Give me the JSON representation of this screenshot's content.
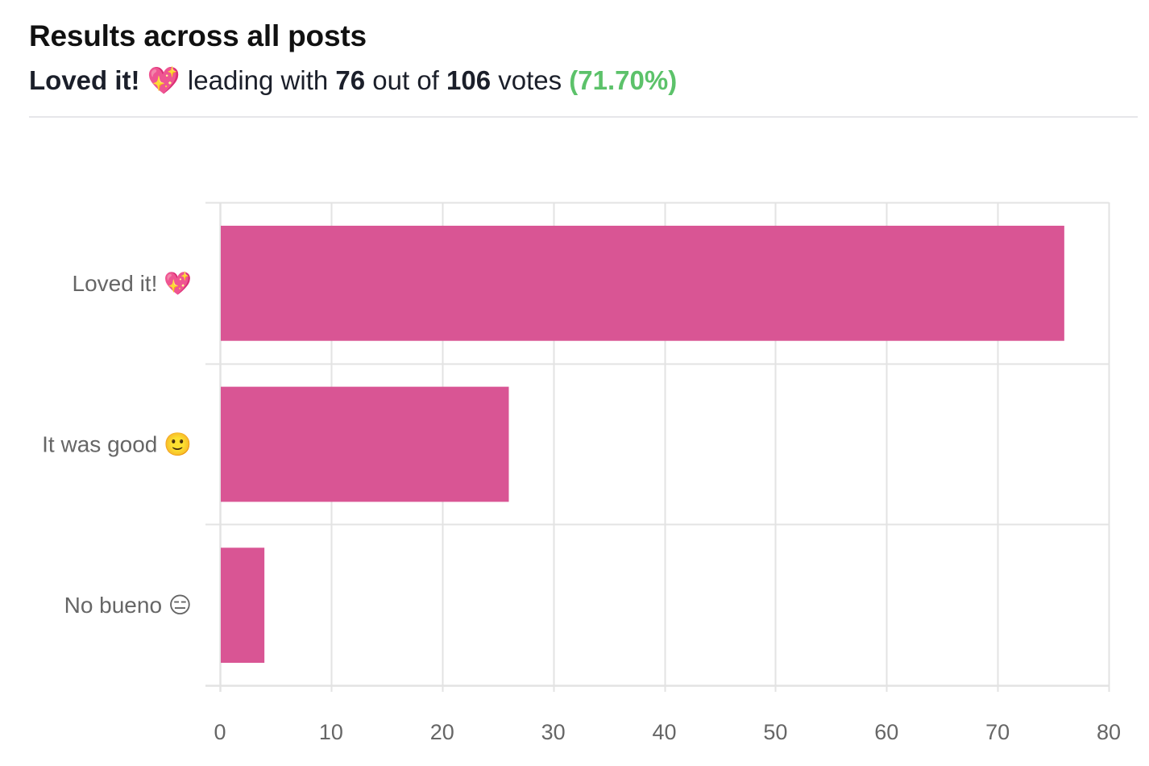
{
  "header": {
    "title": "Results across all posts",
    "leader_label": "Loved it! 💖",
    "text_leading_with": " leading with ",
    "leader_votes": "76",
    "text_out_of": " out of ",
    "total_votes": "106",
    "text_votes": " votes ",
    "leader_percent": "(71.70%)"
  },
  "colors": {
    "bar": "#d95594",
    "percent": "#5cc26a",
    "grid": "#e3e3e3",
    "axis_text": "#666666"
  },
  "chart_data": {
    "type": "bar",
    "orientation": "horizontal",
    "title": "Results across all posts",
    "subtitle": "Loved it! 💖 leading with 76 out of 106 votes (71.70%)",
    "categories": [
      "Loved it! 💖",
      "It was good 🙂",
      "No bueno 😑"
    ],
    "values": [
      76,
      26,
      4
    ],
    "xlabel": "",
    "ylabel": "",
    "xlim": [
      0,
      80
    ],
    "xticks": [
      0,
      10,
      20,
      30,
      40,
      50,
      60,
      70,
      80
    ],
    "grid": true,
    "legend": false,
    "bar_color": "#d95594"
  }
}
